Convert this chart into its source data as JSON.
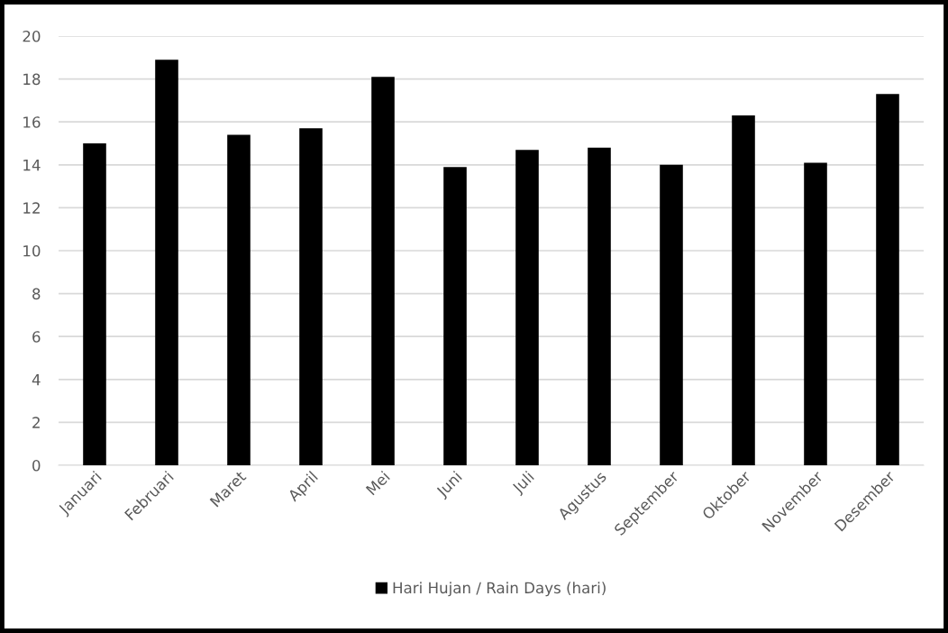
{
  "chart_data": {
    "type": "bar",
    "categories": [
      "Januari",
      "Februari",
      "Maret",
      "April",
      "Mei",
      "Juni",
      "Juli",
      "Agustus",
      "September",
      "Oktober",
      "November",
      "Desember"
    ],
    "series": [
      {
        "name": "Hari Hujan / Rain Days (hari)",
        "color": "#000000",
        "values": [
          15.0,
          18.9,
          15.4,
          15.7,
          18.1,
          13.9,
          14.7,
          14.8,
          14.0,
          16.3,
          14.1,
          17.3
        ]
      }
    ],
    "ylim": [
      0,
      20
    ],
    "yticks": [
      0,
      2,
      4,
      6,
      8,
      10,
      12,
      14,
      16,
      18,
      20
    ],
    "grid": "y",
    "legend": "bottom"
  }
}
